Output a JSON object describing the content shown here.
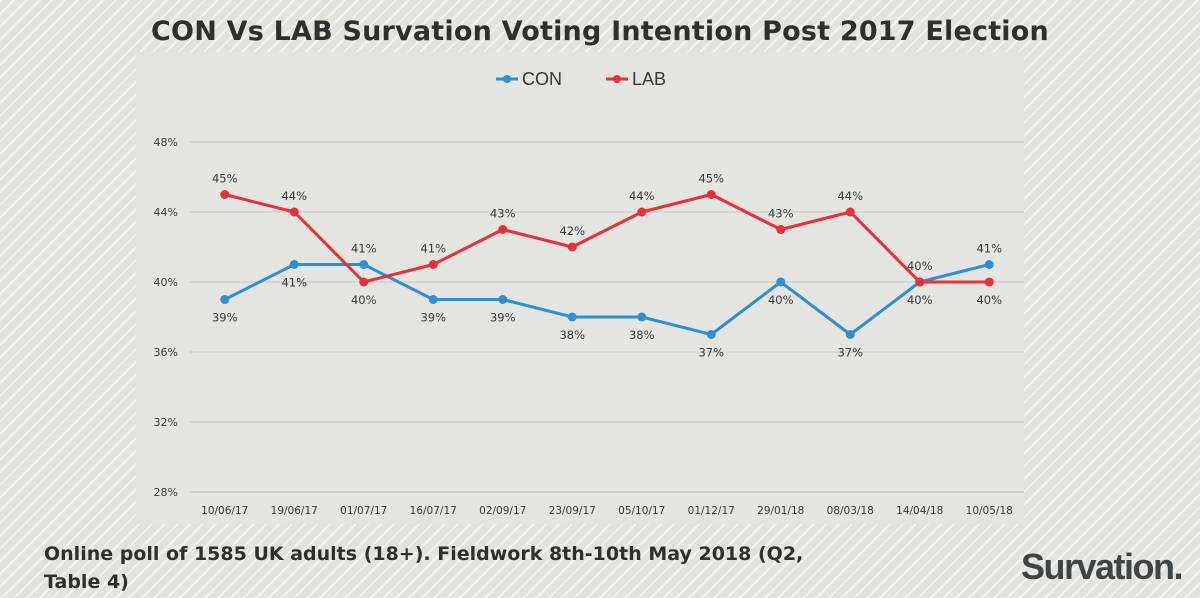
{
  "chart_data": {
    "type": "line",
    "title": "CON Vs LAB Survation Voting Intention Post 2017 Election",
    "categories": [
      "10/06/17",
      "19/06/17",
      "01/07/17",
      "16/07/17",
      "02/09/17",
      "23/09/17",
      "05/10/17",
      "01/12/17",
      "29/01/18",
      "08/03/18",
      "14/04/18",
      "10/05/18"
    ],
    "series": [
      {
        "name": "CON",
        "color": "#2f8fd0",
        "values": [
          39,
          41,
          41,
          39,
          39,
          38,
          38,
          37,
          40,
          37,
          40,
          41
        ]
      },
      {
        "name": "LAB",
        "color": "#e8303a",
        "values": [
          45,
          44,
          40,
          41,
          43,
          42,
          44,
          45,
          43,
          44,
          40,
          40
        ]
      }
    ],
    "ylim": [
      28,
      48
    ],
    "yticks": [
      28,
      32,
      36,
      40,
      44,
      48
    ],
    "tick_suffix": "%",
    "grid": true,
    "legend": "top-center"
  },
  "footnote": "Online poll of 1585 UK adults (18+). Fieldwork 8th-10th May 2018 (Q2, Table 4)",
  "logo": "Survation."
}
